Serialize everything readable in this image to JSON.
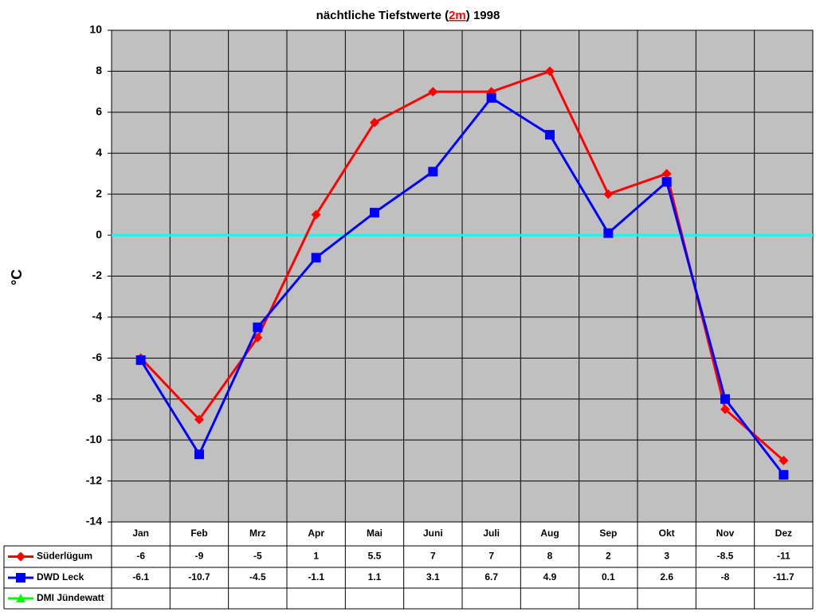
{
  "chart_data": {
    "type": "line",
    "title": [
      "nächtliche Tiefstwerte (",
      "2m",
      ") 1998"
    ],
    "y_label": "°C",
    "categories": [
      "Jan",
      "Feb",
      "Mrz",
      "Apr",
      "Mai",
      "Juni",
      "Juli",
      "Aug",
      "Sep",
      "Okt",
      "Nov",
      "Dez"
    ],
    "series": [
      {
        "name": "Süderlügum",
        "color": "#ff0000",
        "marker": "diamond",
        "values": [
          -6,
          -9,
          -5,
          1,
          5.5,
          7,
          7,
          8,
          2,
          3,
          -8.5,
          -11
        ]
      },
      {
        "name": "DWD Leck",
        "color": "#0000ff",
        "marker": "square",
        "values": [
          -6.1,
          -10.7,
          -4.5,
          -1.1,
          1.1,
          3.1,
          6.7,
          4.9,
          0.1,
          2.6,
          -8,
          -11.7
        ]
      },
      {
        "name": "DMI Jündewatt",
        "color": "#00ff00",
        "marker": "triangle",
        "values": [
          null,
          null,
          null,
          null,
          null,
          null,
          null,
          null,
          null,
          null,
          null,
          null
        ]
      }
    ],
    "ylim": [
      -14,
      10
    ],
    "yticks": [
      -14,
      -12,
      -10,
      -8,
      -6,
      -4,
      -2,
      0,
      2,
      4,
      6,
      8,
      10
    ],
    "grid": true,
    "zero_line_color": "#00ffff",
    "plot_background": "#c0c0c0"
  }
}
